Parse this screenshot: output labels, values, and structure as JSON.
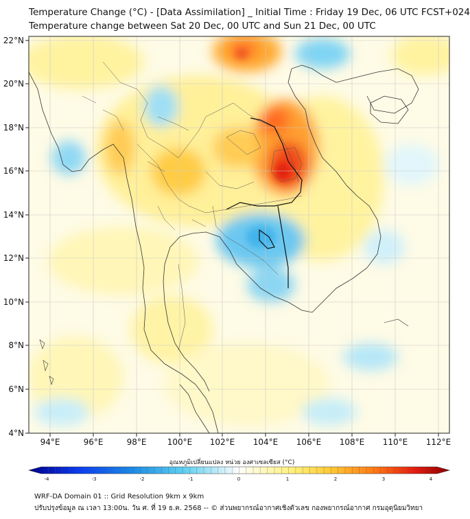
{
  "title_line1": "Temperature Change (°C) - [Data Assimilation] _ Initial Time : Friday 19 Dec, 06 UTC FCST+024",
  "title_line2": "Temperature change between Sat 20 Dec, 00 UTC and Sun 21 Dec, 00 UTC",
  "lat_ticks": [
    "22°N",
    "20°N",
    "18°N",
    "16°N",
    "14°N",
    "12°N",
    "10°N",
    "8°N",
    "6°N",
    "4°N"
  ],
  "lon_ticks": [
    "94°E",
    "96°E",
    "98°E",
    "100°E",
    "102°E",
    "104°E",
    "106°E",
    "108°E",
    "110°E",
    "112°E"
  ],
  "colorbar": {
    "label": "อุณหภูมิเปลี่ยนแปลง หน่วย องศาเซลเซียส (°C)",
    "ticks": [
      "-4",
      "-3",
      "-2",
      "-1",
      "0",
      "1",
      "2",
      "3",
      "4"
    ],
    "range": [
      -4,
      4
    ]
  },
  "footer_line1": "WRF-DA Domain 01 :: Grid Resolution 9km x 9km",
  "footer_line2": "ปรับปรุงข้อมูล ณ เวลา 13:00น. วัน ศ. ที่ 19 ธ.ค. 2568 -- © ส่วนพยากรณ์อากาศเชิงตัวเลข กองพยากรณ์อากาศ กรมอุตุนิยมวิทยา",
  "colors": {
    "warm": "#e8201a",
    "cool": "#39a6e6",
    "neutral": "#ffffff"
  }
}
